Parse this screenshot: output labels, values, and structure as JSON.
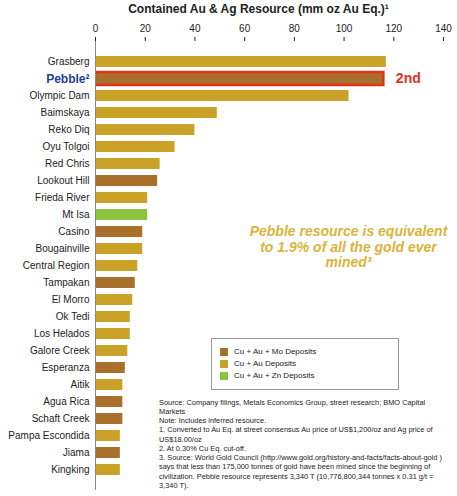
{
  "chart_data": {
    "type": "bar",
    "orientation": "horizontal",
    "title": "Contained Au & Ag Resource (mm oz Au Eq.)¹",
    "categories": [
      "Grasberg",
      "Pebble²",
      "Olympic Dam",
      "Baimskaya",
      "Reko Diq",
      "Oyu Tolgoi",
      "Red Chris",
      "Lookout Hill",
      "Frieda River",
      "Mt Isa",
      "Casino",
      "Bougainville",
      "Central Region",
      "Tampakan",
      "El Morro",
      "Ok Tedi",
      "Los Helados",
      "Galore Creek",
      "Esperanza",
      "Aitik",
      "Agua Rica",
      "Schaft Creek",
      "Pampa Escondida",
      "Jiama",
      "Kingking"
    ],
    "series": [
      {
        "name": "Cu + Au + Mo Deposits",
        "color": "#a8702a",
        "values": [
          null,
          116,
          null,
          null,
          null,
          null,
          null,
          25,
          null,
          null,
          19,
          null,
          null,
          16,
          null,
          null,
          null,
          null,
          12,
          null,
          11,
          11,
          null,
          10,
          null
        ]
      },
      {
        "name": "Cu + Au Deposits",
        "color": "#c9a227",
        "values": [
          117,
          null,
          102,
          49,
          40,
          32,
          26,
          null,
          21,
          null,
          null,
          19,
          17,
          null,
          15,
          14,
          14,
          13,
          null,
          11,
          null,
          null,
          10,
          null,
          10
        ]
      },
      {
        "name": "Cu + Au + Zn Deposits",
        "color": "#8cc43f",
        "values": [
          null,
          null,
          null,
          null,
          null,
          null,
          null,
          null,
          null,
          21,
          null,
          null,
          null,
          null,
          null,
          null,
          null,
          null,
          null,
          null,
          null,
          null,
          null,
          null,
          null
        ]
      }
    ],
    "xlim": [
      0,
      140
    ],
    "xticks": [
      0,
      20,
      40,
      60,
      80,
      100,
      120,
      140
    ],
    "grid": false,
    "legend": "lower right",
    "annotations": [
      {
        "text": "2nd",
        "category": "Pebble²"
      },
      {
        "text": "Pebble resource is equivalent to 1.9% of all the gold ever mined³"
      }
    ],
    "notes": [
      "Source: Company filings, Metals Economics Group, street research; BMO Capital Markets",
      "Note: Includes inferred resource.",
      "1. Converted to Au Eq. at street consensus Au price of US$1,200/oz and Ag price of US$18.00/oz",
      "2. At 0.30% Cu Eq. cut-off.",
      "3. Source: World Gold Council (http://www.gold.org/history-and-facts/facts-about-gold ) says that less than 175,000 tonnes of gold have been mined since the beginning of civilization. Pebble resource represents 3,340 T (10,776,800,344 tonnes x 0.31 g/t = 3,340 T)."
    ]
  }
}
